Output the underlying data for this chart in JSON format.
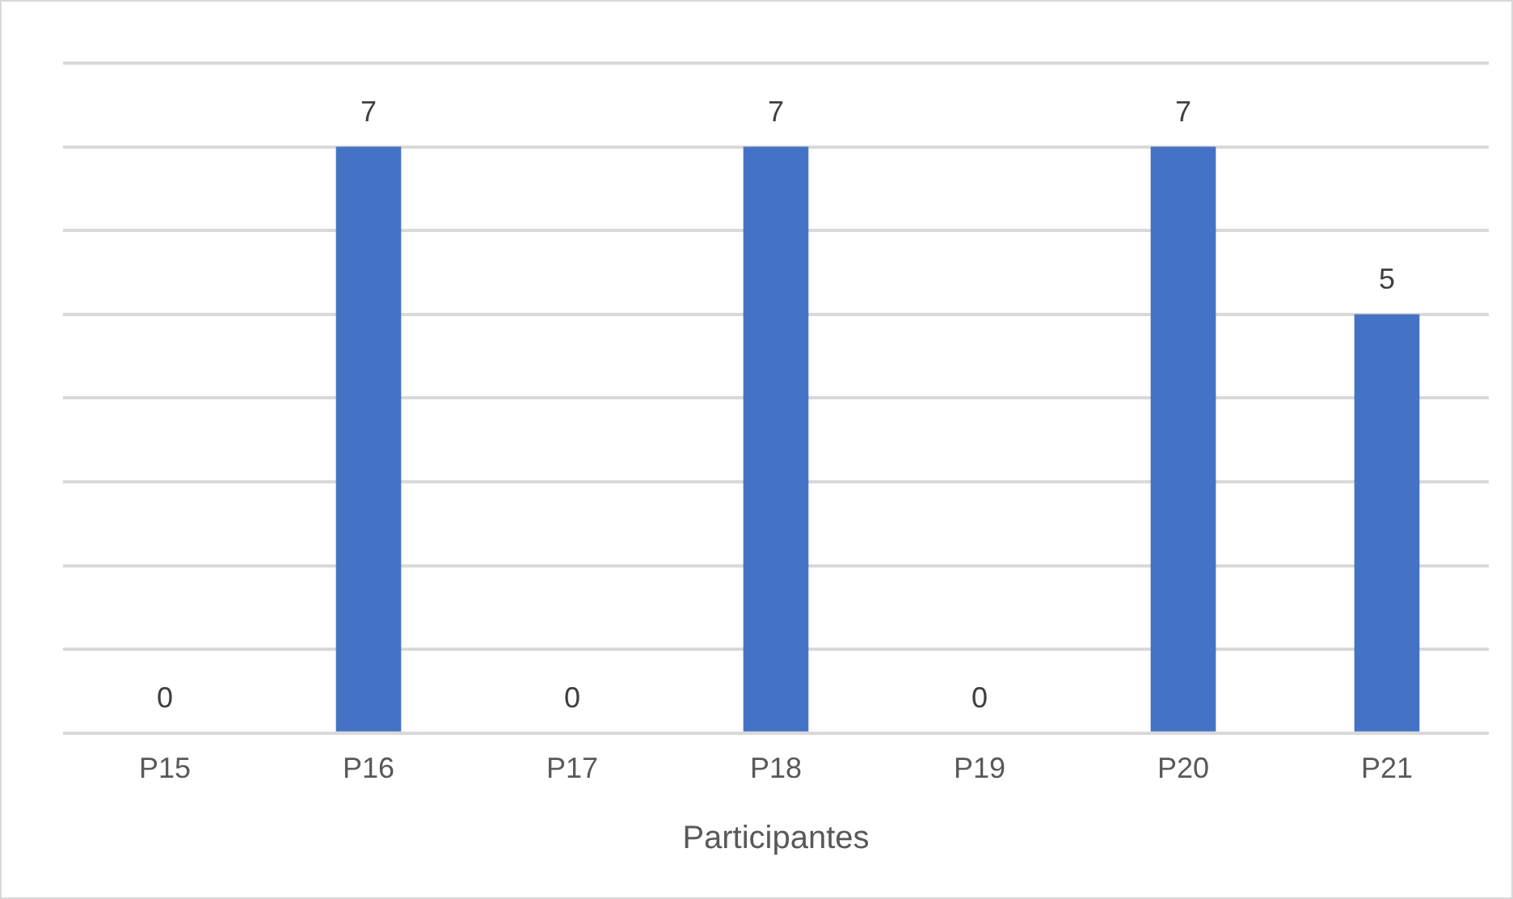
{
  "chart_data": {
    "type": "bar",
    "xlabel": "Participantes",
    "categories": [
      "P15",
      "P16",
      "P17",
      "P18",
      "P19",
      "P20",
      "P21"
    ],
    "values": [
      0,
      7,
      0,
      7,
      0,
      7,
      5
    ],
    "color": "#4472c4",
    "ylim": [
      0,
      8
    ],
    "yticks": [
      {
        "value": 0,
        "label": null
      },
      {
        "value": 1,
        "label": null
      },
      {
        "value": 2,
        "label": null
      },
      {
        "value": 3,
        "label": null
      },
      {
        "value": 4,
        "label": null
      },
      {
        "value": 5,
        "label": null
      },
      {
        "value": 6,
        "label": null
      },
      {
        "value": 7,
        "label": null
      },
      {
        "value": 8,
        "label": null
      }
    ],
    "grid": "y",
    "tick_labels": "x",
    "data_labels": true
  }
}
